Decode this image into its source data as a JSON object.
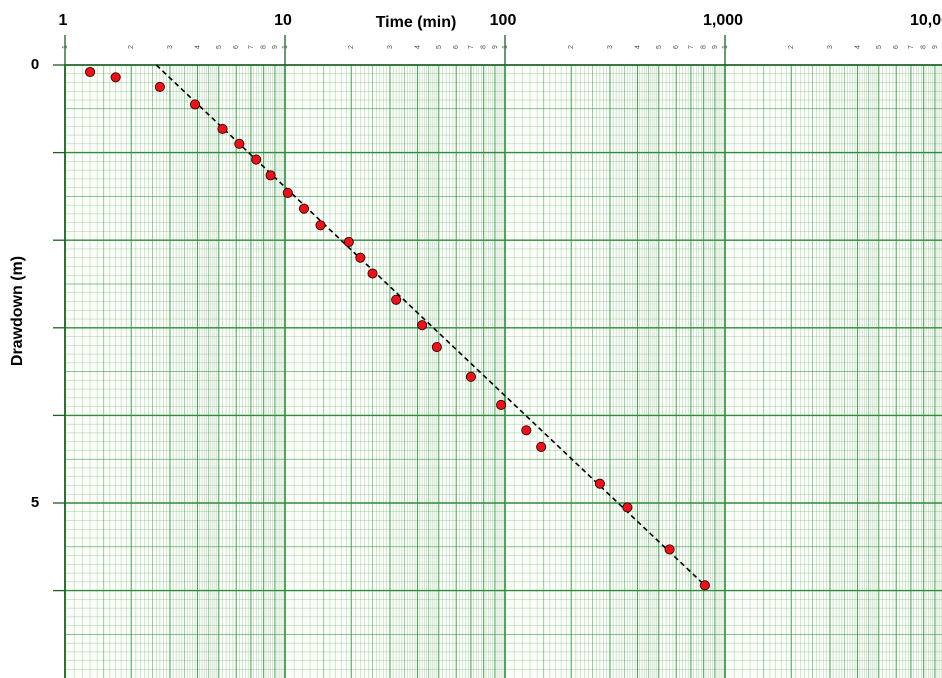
{
  "chart_data": {
    "type": "scatter",
    "title": "",
    "xlabel": "Time (min)",
    "ylabel": "Drawdown (m)",
    "x_scale": "log",
    "xlim": [
      1,
      10000
    ],
    "ylim": [
      0,
      7
    ],
    "y_inverted": true,
    "grid": true,
    "x_tick_labels": [
      "1",
      "10",
      "100",
      "1,000",
      "10,000"
    ],
    "x_minor_tick_labels": [
      "2",
      "3",
      "4",
      "5",
      "6",
      "7",
      "8",
      "9"
    ],
    "y_tick_labels": [
      "0",
      "5"
    ],
    "y_tick_values": [
      0,
      5
    ],
    "series": [
      {
        "marker_color": "#e8141c",
        "x": [
          1.3,
          1.7,
          2.7,
          3.9,
          5.2,
          6.2,
          7.4,
          8.6,
          10.3,
          12.2,
          14.5,
          19.5,
          22.0,
          25.0,
          32.0,
          42.0,
          49.0,
          70.0,
          96.0,
          125.0,
          146.0,
          270.0,
          360.0,
          560.0,
          810.0
        ],
        "y": [
          0.08,
          0.14,
          0.25,
          0.45,
          0.73,
          0.9,
          1.08,
          1.26,
          1.46,
          1.64,
          1.83,
          2.02,
          2.2,
          2.38,
          2.68,
          2.97,
          3.22,
          3.56,
          3.88,
          4.17,
          4.36,
          4.78,
          5.05,
          5.53,
          5.94
        ]
      }
    ],
    "trend_line": {
      "style": "dashed",
      "color": "#000000",
      "x": [
        2.6,
        810
      ],
      "y": [
        0.0,
        5.94
      ]
    }
  }
}
